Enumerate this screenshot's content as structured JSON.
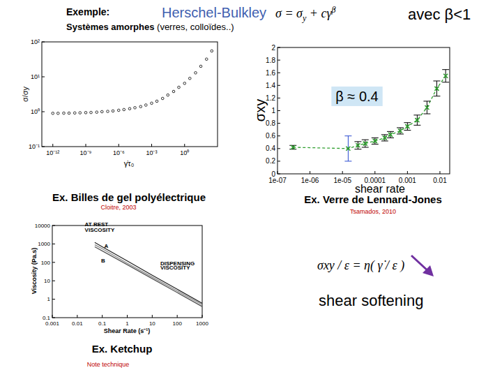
{
  "header": {
    "example": "Exemple:",
    "model": "Herschel-Bulkley",
    "formula": [
      "σ = σ",
      "y",
      " + c",
      "γ̇",
      "β"
    ],
    "condition": "avec β<1",
    "systems_bold": "Systèmes amorphes",
    "systems_rest": " (verres, colloïdes..)"
  },
  "chart_data": [
    {
      "type": "scatter",
      "title": "Ex. Billes de gel polyélectrique",
      "source": "Cloitre, 2003",
      "x_label": "γ̇τ₀",
      "y_label": "σ/σy",
      "log": true,
      "color": "#000000",
      "marker": "circle",
      "xlim": [
        1e-13,
        1000
      ],
      "xticks": [
        {
          "value": 1e-12,
          "label": "10⁻¹²"
        },
        {
          "value": 1e-09,
          "label": "10⁻⁹"
        },
        {
          "value": 1e-06,
          "label": "10⁻⁶"
        },
        {
          "value": 0.001,
          "label": "10⁻³"
        },
        {
          "value": 1,
          "label": "10⁰"
        }
      ],
      "ylim": [
        0.1,
        100
      ],
      "yticks": [
        {
          "value": 0.1,
          "label": "10⁻¹"
        },
        {
          "value": 1,
          "label": "10⁰"
        },
        {
          "value": 10,
          "label": "10¹"
        },
        {
          "value": 100,
          "label": "10²"
        }
      ],
      "x": [
        1e-12,
        3e-12,
        1e-11,
        3e-11,
        1e-10,
        3e-10,
        1e-09,
        3e-09,
        1e-08,
        3e-08,
        1e-07,
        3e-07,
        1e-06,
        3e-06,
        1e-05,
        3e-05,
        0.0001,
        0.0003,
        0.001,
        0.003,
        0.01,
        0.03,
        0.1,
        0.3,
        1,
        3,
        10,
        30,
        100,
        300
      ],
      "values": [
        0.9,
        0.9,
        0.91,
        0.91,
        0.92,
        0.93,
        0.94,
        0.95,
        0.97,
        1,
        1.02,
        1.05,
        1.1,
        1.15,
        1.22,
        1.3,
        1.4,
        1.55,
        1.75,
        2,
        2.4,
        3,
        3.8,
        5,
        6.5,
        9,
        13,
        20,
        32,
        55
      ]
    },
    {
      "type": "line",
      "title": "Ex. Verre de Lennard-Jones",
      "source": "Tsamados, 2010",
      "x_label": "shear rate",
      "y_label": "σxy",
      "log": "x",
      "color": "#2e9e2e",
      "marker": "x",
      "line_style": "dashed",
      "xlim": [
        1e-07,
        0.02
      ],
      "xticks": [
        {
          "value": 1e-07,
          "label": "1e-07"
        },
        {
          "value": 1e-06,
          "label": "1e-06"
        },
        {
          "value": 1e-05,
          "label": "1e-05"
        },
        0.0001,
        0.001,
        0.01
      ],
      "ylim": [
        0,
        2
      ],
      "yticks": [
        0,
        0.2,
        0.4,
        0.6,
        0.8,
        1,
        1.2,
        1.4,
        1.6,
        1.8,
        2
      ],
      "x": [
        3e-07,
        1.5e-05,
        3e-05,
        5e-05,
        0.0001,
        0.0002,
        0.0003,
        0.0006,
        0.001,
        0.002,
        0.004,
        0.008,
        0.015
      ],
      "values": [
        0.42,
        0.4,
        0.45,
        0.48,
        0.52,
        0.57,
        0.62,
        0.68,
        0.75,
        0.85,
        1.05,
        1.35,
        1.55
      ],
      "errors": [
        0.03,
        0.2,
        0.06,
        0.06,
        0.05,
        0.05,
        0.05,
        0.05,
        0.06,
        0.08,
        0.1,
        0.12,
        0.1
      ],
      "annotations": [
        {
          "text": "β ≈ 0.4",
          "x": 2.8e-05,
          "y": 1.15
        }
      ]
    },
    {
      "type": "line",
      "title": "Ex. Ketchup",
      "source": "Note technique",
      "x_label": "Shear Rate (s⁻¹)",
      "y_label": "Viscosity (Pa.s)",
      "log": true,
      "xlim": [
        0.001,
        1000
      ],
      "xticks": [
        0.001,
        0.01,
        0.1,
        1,
        10,
        100,
        1000
      ],
      "ylim": [
        0.1,
        10000
      ],
      "yticks": [
        0.1,
        1,
        10,
        100,
        1000,
        10000
      ],
      "x": [
        0.05,
        0.1,
        1,
        10,
        100,
        1000
      ],
      "series": [
        {
          "color": "#222222",
          "values": [
            1200,
            700,
            120,
            20,
            3.5,
            0.6
          ]
        },
        {
          "color": "#555555",
          "values": [
            700,
            420,
            75,
            13,
            2.3,
            0.4
          ]
        },
        {
          "color": "#888888",
          "values": [
            900,
            550,
            90,
            16,
            2.8,
            0.5
          ]
        }
      ],
      "annotations": [
        {
          "text": "AT REST",
          "x": 0.02,
          "y": 9000
        },
        {
          "text": "VISCOSITY",
          "x": 0.02,
          "y": 4500
        },
        {
          "text": "A",
          "x": 0.12,
          "y": 600
        },
        {
          "text": "B",
          "x": 0.09,
          "y": 100
        },
        {
          "text": "DISPENSING",
          "x": 21,
          "y": 70
        },
        {
          "text": "VISCOSITY",
          "x": 21,
          "y": 40
        }
      ]
    }
  ],
  "formula2": "σxy / ε = η( γ̇ / ε )",
  "annotation": "shear softening"
}
